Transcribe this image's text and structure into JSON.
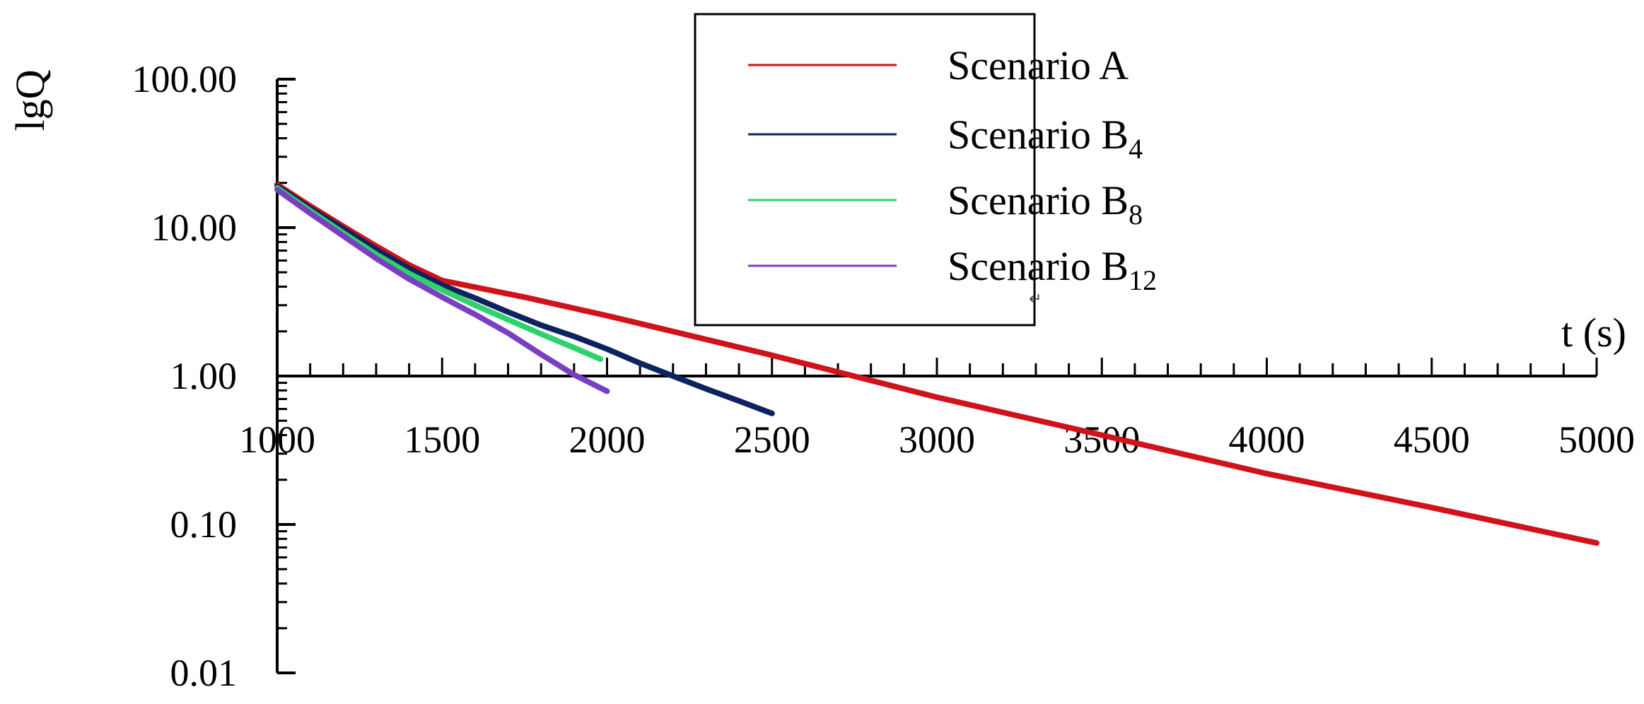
{
  "chart_data": {
    "type": "line",
    "ylabel": "lgQ",
    "xlabel": "t (s)",
    "y_scale": "log",
    "ylim": [
      0.01,
      100
    ],
    "xlim": [
      1000,
      5000
    ],
    "x_ticks": [
      "1000",
      "1500",
      "2000",
      "2500",
      "3000",
      "3500",
      "4000",
      "4500",
      "5000"
    ],
    "y_ticks": [
      "100.00",
      "10.00",
      "1.00",
      "0.10",
      "0.01"
    ],
    "grid": false,
    "legend_position": "top-center",
    "legend_mark": "↵",
    "series": [
      {
        "name": "Scenario A",
        "base": "Scenario A",
        "sub": "",
        "color": "#d0121b",
        "x": [
          1000,
          1100,
          1200,
          1300,
          1400,
          1500,
          1750,
          2000,
          2500,
          3000,
          3500,
          4000,
          4500,
          5000
        ],
        "y": [
          19.5,
          14.0,
          10.2,
          7.5,
          5.6,
          4.4,
          3.4,
          2.55,
          1.38,
          0.72,
          0.4,
          0.22,
          0.13,
          0.075
        ]
      },
      {
        "name": "Scenario B4",
        "base": "Scenario B",
        "sub": "4",
        "color": "#0d2360",
        "x": [
          1000,
          1100,
          1200,
          1300,
          1400,
          1500,
          1600,
          1700,
          1800,
          1900,
          2000,
          2100,
          2200,
          2300,
          2400,
          2500
        ],
        "y": [
          19.0,
          13.5,
          9.8,
          7.1,
          5.3,
          4.1,
          3.35,
          2.7,
          2.2,
          1.85,
          1.52,
          1.22,
          1.0,
          0.82,
          0.68,
          0.56
        ]
      },
      {
        "name": "Scenario B8",
        "base": "Scenario B",
        "sub": "8",
        "color": "#2fd26a",
        "x": [
          1000,
          1100,
          1200,
          1300,
          1400,
          1500,
          1600,
          1700,
          1800,
          1900,
          1980
        ],
        "y": [
          18.5,
          13.0,
          9.2,
          6.6,
          4.9,
          3.8,
          3.0,
          2.4,
          1.92,
          1.55,
          1.3
        ]
      },
      {
        "name": "Scenario B12",
        "base": "Scenario B",
        "sub": "12",
        "color": "#7a3fc1",
        "x": [
          1000,
          1100,
          1200,
          1300,
          1400,
          1500,
          1600,
          1700,
          1800,
          1900,
          2000
        ],
        "y": [
          18.0,
          12.5,
          8.8,
          6.2,
          4.5,
          3.4,
          2.6,
          1.95,
          1.4,
          1.02,
          0.79
        ]
      }
    ]
  }
}
